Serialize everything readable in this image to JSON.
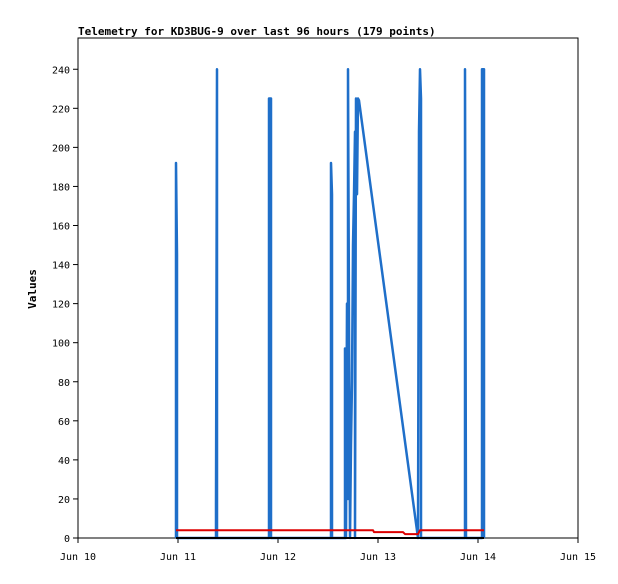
{
  "chart_data": {
    "type": "line",
    "title": "Telemetry for KD3BUG-9 over last 96 hours (179 points)",
    "xlabel": "",
    "ylabel": "Values",
    "x_ticks": [
      "Jun 10",
      "Jun 11",
      "Jun 12",
      "Jun 13",
      "Jun 14",
      "Jun 15"
    ],
    "x_range": [
      "Jun 10",
      "Jun 15"
    ],
    "y_ticks": [
      0,
      20,
      40,
      60,
      80,
      100,
      120,
      140,
      160,
      180,
      200,
      220,
      240
    ],
    "ylim": [
      0,
      256
    ],
    "grid": false,
    "series": [
      {
        "color": "#1f6fc9",
        "points": [
          [
            10.98,
            0
          ],
          [
            10.98,
            192
          ],
          [
            10.99,
            145
          ],
          [
            10.99,
            0
          ],
          [
            11.38,
            0
          ],
          [
            11.38,
            17
          ],
          [
            11.39,
            240
          ],
          [
            11.39,
            0
          ],
          [
            11.91,
            0
          ],
          [
            11.91,
            225
          ],
          [
            11.92,
            225
          ],
          [
            11.93,
            225
          ],
          [
            11.93,
            0
          ],
          [
            12.53,
            0
          ],
          [
            12.53,
            192
          ],
          [
            12.54,
            176
          ],
          [
            12.54,
            0
          ],
          [
            12.67,
            0
          ],
          [
            12.67,
            97
          ],
          [
            12.68,
            80
          ],
          [
            12.68,
            0
          ],
          [
            12.69,
            120
          ],
          [
            12.7,
            20
          ],
          [
            12.7,
            240
          ],
          [
            12.71,
            112
          ],
          [
            12.72,
            0
          ],
          [
            12.73,
            48
          ],
          [
            12.74,
            80
          ],
          [
            12.75,
            150
          ],
          [
            12.76,
            176
          ],
          [
            12.77,
            208
          ],
          [
            12.77,
            0
          ],
          [
            12.78,
            225
          ],
          [
            12.79,
            176
          ],
          [
            12.8,
            225
          ],
          [
            12.81,
            224
          ],
          [
            13.4,
            0
          ],
          [
            13.41,
            208
          ],
          [
            13.42,
            240
          ],
          [
            13.43,
            225
          ],
          [
            13.43,
            0
          ],
          [
            13.87,
            0
          ],
          [
            13.87,
            240
          ],
          [
            13.88,
            0
          ],
          [
            14.04,
            0
          ],
          [
            14.04,
            240
          ],
          [
            14.05,
            240
          ],
          [
            14.06,
            240
          ],
          [
            14.06,
            0
          ]
        ]
      },
      {
        "color": "#dd0000",
        "points": [
          [
            10.98,
            4
          ],
          [
            12.95,
            4
          ],
          [
            12.96,
            3
          ],
          [
            13.25,
            3
          ],
          [
            13.27,
            2
          ],
          [
            13.4,
            2
          ],
          [
            13.42,
            4
          ],
          [
            14.06,
            4
          ]
        ]
      },
      {
        "color": "#000000",
        "points": [
          [
            10.98,
            0
          ],
          [
            14.06,
            0
          ]
        ]
      }
    ]
  }
}
